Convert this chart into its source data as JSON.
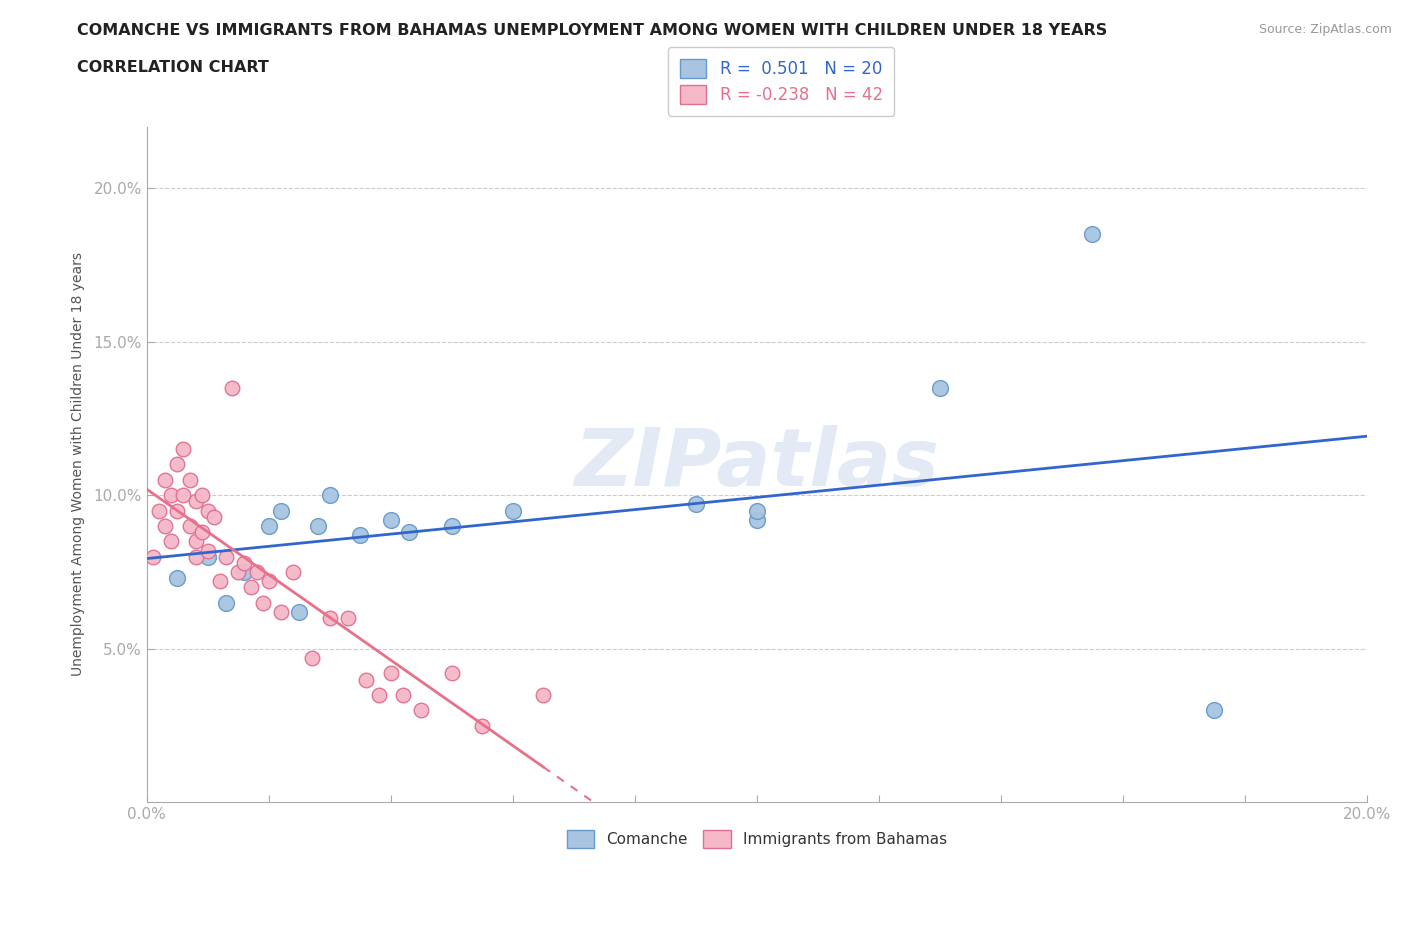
{
  "title_line1": "COMANCHE VS IMMIGRANTS FROM BAHAMAS UNEMPLOYMENT AMONG WOMEN WITH CHILDREN UNDER 18 YEARS",
  "title_line2": "CORRELATION CHART",
  "source": "Source: ZipAtlas.com",
  "ylabel": "Unemployment Among Women with Children Under 18 years",
  "xlim": [
    0.0,
    0.2
  ],
  "ylim": [
    0.0,
    0.22
  ],
  "yticks": [
    0.05,
    0.1,
    0.15,
    0.2
  ],
  "ytick_labels": [
    "5.0%",
    "10.0%",
    "15.0%",
    "20.0%"
  ],
  "xticks": [
    0.0,
    0.02,
    0.04,
    0.06,
    0.08,
    0.1,
    0.12,
    0.14,
    0.16,
    0.18,
    0.2
  ],
  "xtick_labels": [
    "0.0%",
    "",
    "",
    "",
    "",
    "",
    "",
    "",
    "",
    "",
    "20.0%"
  ],
  "comanche_color": "#a8c4e0",
  "comanche_edge_color": "#6699cc",
  "bahamas_color": "#f4b8c8",
  "bahamas_edge_color": "#e07090",
  "line_blue": "#3366cc",
  "line_pink": "#e8708a",
  "watermark": "ZIPatlas",
  "legend_r1": "R =  0.501   N = 20",
  "legend_r2": "R = -0.238   N = 42",
  "comanche_x": [
    0.005,
    0.01,
    0.013,
    0.016,
    0.02,
    0.022,
    0.025,
    0.028,
    0.03,
    0.035,
    0.04,
    0.043,
    0.05,
    0.06,
    0.09,
    0.1,
    0.13,
    0.155,
    0.175,
    0.1
  ],
  "comanche_y": [
    0.073,
    0.08,
    0.065,
    0.075,
    0.09,
    0.095,
    0.062,
    0.09,
    0.1,
    0.087,
    0.092,
    0.088,
    0.09,
    0.095,
    0.097,
    0.092,
    0.135,
    0.185,
    0.03,
    0.095
  ],
  "bahamas_x": [
    0.001,
    0.002,
    0.003,
    0.003,
    0.004,
    0.004,
    0.005,
    0.005,
    0.006,
    0.006,
    0.007,
    0.007,
    0.008,
    0.008,
    0.008,
    0.009,
    0.009,
    0.01,
    0.01,
    0.011,
    0.012,
    0.013,
    0.014,
    0.015,
    0.016,
    0.017,
    0.018,
    0.019,
    0.02,
    0.022,
    0.024,
    0.027,
    0.03,
    0.033,
    0.036,
    0.038,
    0.04,
    0.042,
    0.045,
    0.05,
    0.055,
    0.065
  ],
  "bahamas_y": [
    0.08,
    0.095,
    0.105,
    0.09,
    0.1,
    0.085,
    0.11,
    0.095,
    0.115,
    0.1,
    0.105,
    0.09,
    0.098,
    0.085,
    0.08,
    0.1,
    0.088,
    0.095,
    0.082,
    0.093,
    0.072,
    0.08,
    0.135,
    0.075,
    0.078,
    0.07,
    0.075,
    0.065,
    0.072,
    0.062,
    0.075,
    0.047,
    0.06,
    0.06,
    0.04,
    0.035,
    0.042,
    0.035,
    0.03,
    0.042,
    0.025,
    0.035
  ]
}
